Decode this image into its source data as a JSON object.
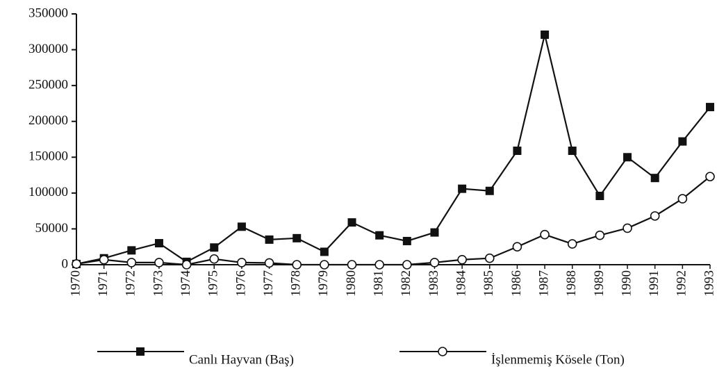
{
  "chart_data": {
    "type": "line",
    "categories": [
      "1970",
      "1971",
      "1972",
      "1973",
      "1974",
      "1975",
      "1976",
      "1977",
      "1978",
      "1979",
      "1980",
      "1981",
      "1982",
      "1983",
      "1984",
      "1985",
      "1986",
      "1987",
      "1988",
      "1989",
      "1990",
      "1991",
      "1992",
      "1993"
    ],
    "series": [
      {
        "name": "Canlı Hayvan (Baş)",
        "color": "#111111",
        "marker": "square",
        "values": [
          1000,
          9000,
          20000,
          30000,
          4000,
          24000,
          53000,
          35000,
          37000,
          18000,
          59000,
          41000,
          33000,
          45000,
          106000,
          103000,
          159000,
          321000,
          159000,
          96000,
          150000,
          121000,
          172000,
          220000
        ]
      },
      {
        "name": "İşlenmemiş Kösele  (Ton)",
        "color": "#111111",
        "marker": "circle",
        "values": [
          1000,
          7000,
          3000,
          3000,
          0,
          8000,
          3000,
          2500,
          0,
          0,
          0,
          0,
          0,
          3000,
          7000,
          9000,
          25000,
          42000,
          29000,
          41000,
          51000,
          68000,
          92000,
          123000
        ]
      }
    ],
    "ylim": [
      0,
      350000
    ],
    "yticks": [
      0,
      50000,
      100000,
      150000,
      200000,
      250000,
      300000,
      350000
    ],
    "grid": false,
    "legend": "bottom"
  }
}
